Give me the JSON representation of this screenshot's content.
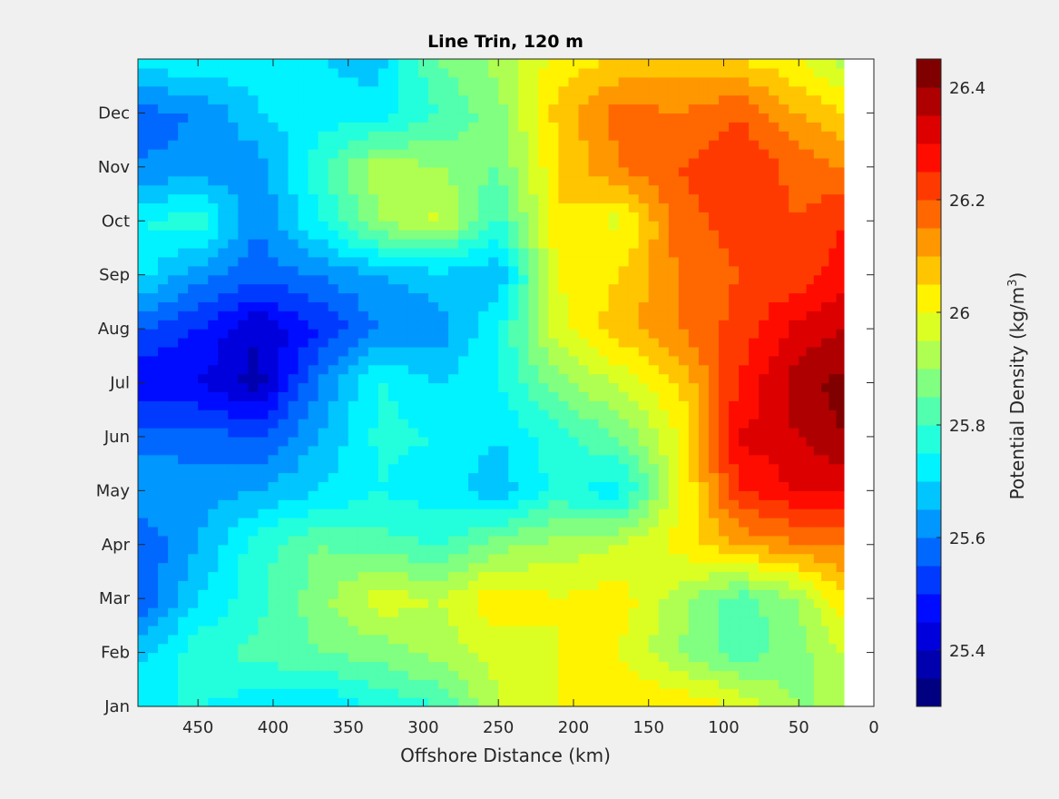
{
  "chart_data": {
    "type": "heatmap",
    "subtype": "filled-contour",
    "title": "Line Trin, 120 m",
    "xlabel": "Offshore Distance (km)",
    "ylabel": "",
    "colorbar_label": "Potential Density (kg/m",
    "colorbar_label_sup": "3",
    "colorbar_label_end": ")",
    "xlim": [
      490,
      0
    ],
    "x_reversed": true,
    "ylim": [
      1,
      13
    ],
    "clim": [
      25.3,
      26.45
    ],
    "level_step": 0.05,
    "colormap": "jet",
    "x_ticks": [
      450,
      400,
      350,
      300,
      250,
      200,
      150,
      100,
      50,
      0
    ],
    "x_tick_labels": [
      "450",
      "400",
      "350",
      "300",
      "250",
      "200",
      "150",
      "100",
      "50",
      "0"
    ],
    "y_ticks": [
      1,
      2,
      3,
      4,
      5,
      6,
      7,
      8,
      9,
      10,
      11,
      12
    ],
    "y_tick_labels": [
      "Jan",
      "Feb",
      "Mar",
      "Apr",
      "May",
      "Jun",
      "Jul",
      "Aug",
      "Sep",
      "Oct",
      "Nov",
      "Dec"
    ],
    "colorbar_ticks": [
      25.4,
      25.6,
      25.8,
      26,
      26.2,
      26.4
    ],
    "colorbar_tick_labels": [
      "25.4",
      "25.6",
      "25.8",
      "26",
      "26.2",
      "26.4"
    ],
    "x": [
      490,
      450,
      410,
      370,
      330,
      290,
      250,
      210,
      170,
      130,
      90,
      50,
      20
    ],
    "y": [
      1,
      2,
      3,
      4,
      5,
      6,
      7,
      8,
      9,
      10,
      11,
      12,
      13
    ],
    "z": [
      [
        25.75,
        25.75,
        25.72,
        25.7,
        25.76,
        25.8,
        25.95,
        26.0,
        26.05,
        26.05,
        26.0,
        25.9,
        25.9
      ],
      [
        25.68,
        25.78,
        25.82,
        25.85,
        25.87,
        25.92,
        25.97,
        26.0,
        26.0,
        25.9,
        25.82,
        25.88,
        25.95
      ],
      [
        25.55,
        25.7,
        25.78,
        25.88,
        25.98,
        25.95,
        26.04,
        26.0,
        26.03,
        25.92,
        25.82,
        25.9,
        26.05
      ],
      [
        25.55,
        25.65,
        25.78,
        25.85,
        25.82,
        25.8,
        25.88,
        25.92,
        25.95,
        26.02,
        26.1,
        26.15,
        26.15
      ],
      [
        25.65,
        25.62,
        25.65,
        25.7,
        25.75,
        25.72,
        25.67,
        25.77,
        25.72,
        25.98,
        26.25,
        26.3,
        26.3
      ],
      [
        25.58,
        25.58,
        25.55,
        25.65,
        25.76,
        25.75,
        25.7,
        25.78,
        25.85,
        26.0,
        26.3,
        26.35,
        26.4
      ],
      [
        25.45,
        25.45,
        25.38,
        25.6,
        25.76,
        25.7,
        25.75,
        25.88,
        25.96,
        26.05,
        26.25,
        26.38,
        26.42
      ],
      [
        25.55,
        25.5,
        25.4,
        25.5,
        25.6,
        25.62,
        25.75,
        25.98,
        26.08,
        26.15,
        26.22,
        26.32,
        26.35
      ],
      [
        25.72,
        25.62,
        25.57,
        25.6,
        25.65,
        25.68,
        25.65,
        26.0,
        26.05,
        26.15,
        26.2,
        26.22,
        26.28
      ],
      [
        25.75,
        25.78,
        25.6,
        25.75,
        25.9,
        25.97,
        25.78,
        26.05,
        25.98,
        26.18,
        26.22,
        26.2,
        26.25
      ],
      [
        25.6,
        25.62,
        25.62,
        25.78,
        25.93,
        25.9,
        25.85,
        26.05,
        26.15,
        26.2,
        26.25,
        26.18,
        26.15
      ],
      [
        25.58,
        25.6,
        25.7,
        25.72,
        25.72,
        25.8,
        25.88,
        26.07,
        26.17,
        26.15,
        26.2,
        26.1,
        26.05
      ],
      [
        25.72,
        25.75,
        25.72,
        25.7,
        25.68,
        25.85,
        25.92,
        26.02,
        26.05,
        26.08,
        26.05,
        26.0,
        25.92
      ]
    ]
  }
}
